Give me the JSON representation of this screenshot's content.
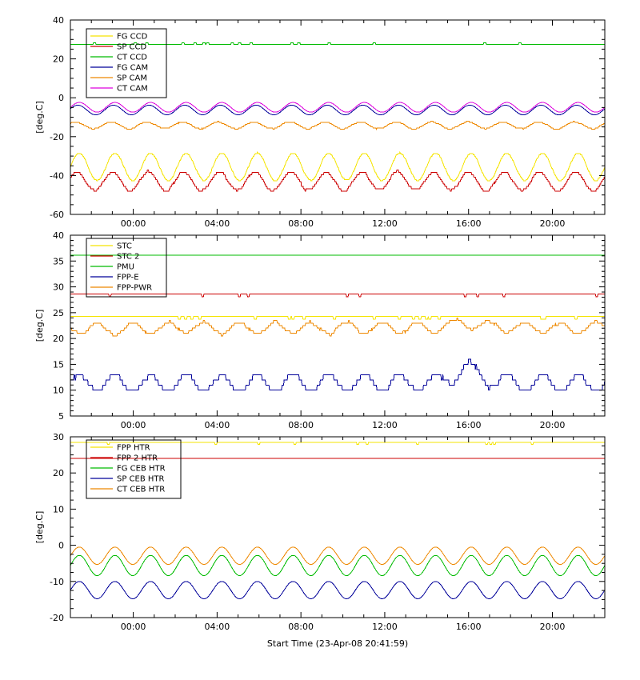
{
  "figure": {
    "xaxis_title": "Start Time (23-Apr-08 20:41:59)",
    "background_color": "#ffffff",
    "axis_color": "#000000",
    "x_domain_hours": [
      0,
      25.5
    ],
    "x_ticks": [
      {
        "hour": 3,
        "label": "00:00"
      },
      {
        "hour": 7,
        "label": "04:00"
      },
      {
        "hour": 11,
        "label": "08:00"
      },
      {
        "hour": 15,
        "label": "12:00"
      },
      {
        "hour": 19,
        "label": "16:00"
      },
      {
        "hour": 23,
        "label": "20:00"
      }
    ]
  },
  "chart_data": [
    {
      "type": "line",
      "ylabel": "[deg.C]",
      "ylim": [
        -60,
        40
      ],
      "yticks": [
        40,
        20,
        0,
        -20,
        -40,
        -60
      ],
      "ytick_labels": [
        "40",
        "20",
        "0",
        "-20",
        "-40",
        "-60"
      ],
      "ytick_minor_step": 5,
      "legend_position": "top-left",
      "series": [
        {
          "name": "FG CCD",
          "color": "#f5e400",
          "shape": "sine",
          "mean": -35.5,
          "amplitude": 7.0,
          "period_h": 1.7,
          "phase": 0.0,
          "quantize": 0.7,
          "jitter": 0.2,
          "approx_range": [
            -43,
            -28
          ]
        },
        {
          "name": "SP CCD",
          "color": "#cc0000",
          "shape": "sine",
          "mean": -43.0,
          "amplitude": 4.8,
          "period_h": 1.7,
          "phase": 0.07,
          "quantize": 1.2,
          "jitter": 0.5,
          "approx_range": [
            -48,
            -38
          ]
        },
        {
          "name": "CT CCD",
          "color": "#00bb00",
          "shape": "flat",
          "mean": 27.5,
          "dropouts": {
            "prob": 0.02,
            "delta": 0.8,
            "hold": 4
          },
          "approx_range": [
            27.5,
            28.3
          ]
        },
        {
          "name": "FG CAM",
          "color": "#000099",
          "shape": "sine",
          "mean": -6.3,
          "amplitude": 2.5,
          "period_h": 1.7,
          "phase": 0.04,
          "approx_range": [
            -8.8,
            -3.8
          ]
        },
        {
          "name": "SP CAM",
          "color": "#ee8800",
          "shape": "sine",
          "mean": -14.2,
          "amplitude": 1.8,
          "period_h": 1.7,
          "phase": 0.1,
          "quantize": 0.6,
          "jitter": 0.2,
          "approx_range": [
            -16,
            -12.4
          ]
        },
        {
          "name": "CT CAM",
          "color": "#dd00dd",
          "shape": "sine",
          "mean": -4.9,
          "amplitude": 2.5,
          "period_h": 1.7,
          "phase": 0.0,
          "approx_range": [
            -7.4,
            -2.4
          ]
        }
      ]
    },
    {
      "type": "line",
      "ylabel": "[deg.C]",
      "ylim": [
        5,
        40
      ],
      "yticks": [
        40,
        35,
        30,
        25,
        20,
        15,
        10,
        5
      ],
      "ytick_labels": [
        "40",
        "35",
        "30",
        "25",
        "20",
        "15",
        "10",
        "5"
      ],
      "ytick_minor_step": 1,
      "legend_position": "top-left",
      "series": [
        {
          "name": "STC",
          "color": "#f5e400",
          "shape": "flat",
          "mean": 24.2,
          "quantize": 0.25,
          "dropouts": {
            "prob": 0.02,
            "delta": -0.5,
            "hold": 4
          },
          "approx_range": [
            23.5,
            24.4
          ]
        },
        {
          "name": "STC 2",
          "color": "#cc0000",
          "shape": "flat",
          "mean": 28.6,
          "dropouts": {
            "prob": 0.012,
            "delta": -0.5,
            "hold": 3
          },
          "approx_range": [
            28.1,
            28.6
          ]
        },
        {
          "name": "PMU",
          "color": "#00bb00",
          "shape": "flat",
          "mean": 36.1,
          "approx_range": [
            36.1,
            36.1
          ]
        },
        {
          "name": "FPP-E",
          "color": "#000099",
          "shape": "sine",
          "mean": 11.4,
          "amplitude": 1.6,
          "period_h": 1.7,
          "phase": 0.0,
          "quantize": 1,
          "jitter": 0.3,
          "bumps": [
            {
              "t_h": 18.9,
              "width_h": 0.9,
              "delta": 2.6
            }
          ],
          "approx_range": [
            10,
            15.5
          ]
        },
        {
          "name": "FPP-PWR",
          "color": "#ee8800",
          "shape": "sine",
          "mean": 22.0,
          "amplitude": 1.1,
          "period_h": 1.7,
          "phase": 0.5,
          "quantize": 0.5,
          "jitter": 0.3,
          "bumps": [
            {
              "t_h": 18.9,
              "width_h": 1.2,
              "delta": 0.9
            }
          ],
          "approx_range": [
            21,
            23.5
          ]
        }
      ]
    },
    {
      "type": "line",
      "ylabel": "[deg.C]",
      "ylim": [
        -20,
        30
      ],
      "yticks": [
        30,
        20,
        10,
        0,
        -10,
        -20
      ],
      "ytick_labels": [
        "30",
        "20",
        "10",
        "0",
        "-10",
        "-20"
      ],
      "ytick_minor_step": 2.5,
      "legend_position": "top-left",
      "series": [
        {
          "name": "FPP HTR",
          "color": "#f5e400",
          "shape": "flat",
          "mean": 28.4,
          "dropouts": {
            "prob": 0.008,
            "delta": -0.5,
            "hold": 3
          },
          "approx_range": [
            27.9,
            28.4
          ]
        },
        {
          "name": "FPP 2 HTR",
          "color": "#cc0000",
          "shape": "flat",
          "mean": 24.0,
          "approx_range": [
            24,
            24
          ]
        },
        {
          "name": "FG CEB HTR",
          "color": "#00bb00",
          "shape": "sine",
          "mean": -5.6,
          "amplitude": 2.8,
          "period_h": 1.7,
          "phase": 0.0,
          "approx_range": [
            -8.5,
            -2.8
          ]
        },
        {
          "name": "SP CEB HTR",
          "color": "#000099",
          "shape": "sine",
          "mean": -12.4,
          "amplitude": 2.4,
          "period_h": 1.7,
          "phase": 0.0,
          "approx_range": [
            -15,
            -10
          ]
        },
        {
          "name": "CT CEB HTR",
          "color": "#ee8800",
          "shape": "sine",
          "mean": -2.9,
          "amplitude": 2.4,
          "period_h": 1.7,
          "phase": 0.0,
          "approx_range": [
            -5.3,
            -0.5
          ]
        }
      ]
    }
  ]
}
